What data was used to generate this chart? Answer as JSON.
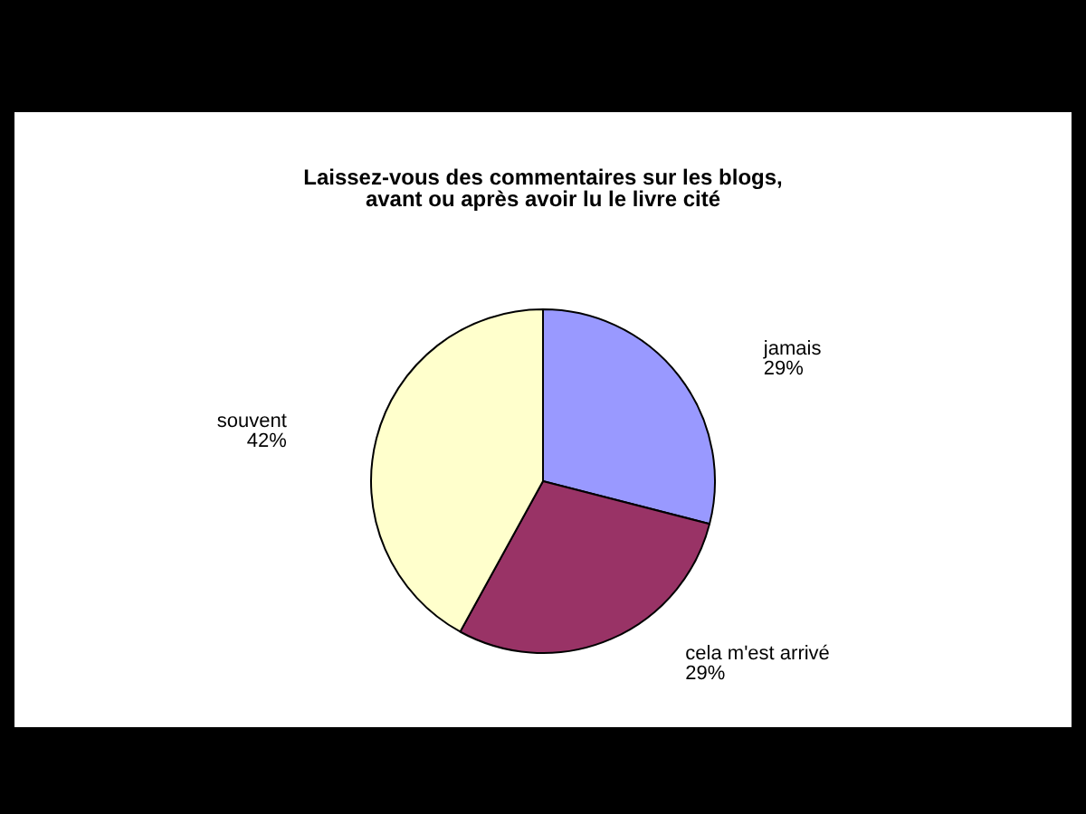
{
  "chart_data": {
    "type": "pie",
    "title": "Laissez-vous des commentaires sur les blogs,\navant ou après avoir lu le livre cité",
    "categories": [
      "jamais",
      "cela m'est arrivé",
      "souvent"
    ],
    "values": [
      29,
      29,
      42
    ],
    "colors": [
      "#9999ff",
      "#993366",
      "#ffffcc"
    ],
    "value_labels": [
      "29%",
      "29%",
      "42%"
    ],
    "legend": false
  }
}
